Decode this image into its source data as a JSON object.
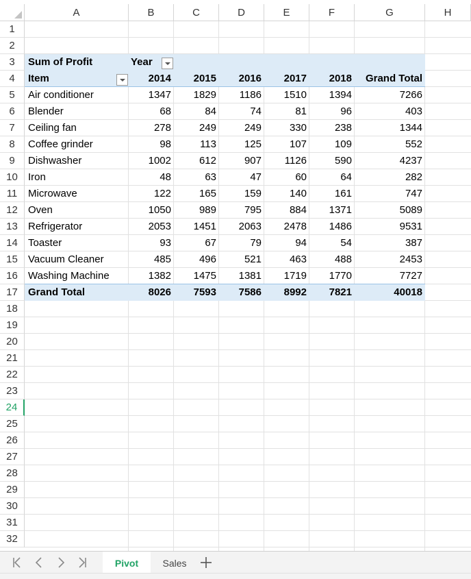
{
  "columns": [
    "A",
    "B",
    "C",
    "D",
    "E",
    "F",
    "G",
    "H"
  ],
  "rows": [
    "1",
    "2",
    "3",
    "4",
    "5",
    "6",
    "7",
    "8",
    "9",
    "10",
    "11",
    "12",
    "13",
    "14",
    "15",
    "16",
    "17",
    "18",
    "19",
    "20",
    "21",
    "22",
    "23",
    "24",
    "25",
    "26",
    "27",
    "28",
    "29",
    "30",
    "31",
    "32"
  ],
  "active_row": "24",
  "pivot": {
    "value_field": "Sum of Profit",
    "column_field": "Year",
    "row_field": "Item",
    "years": [
      "2014",
      "2015",
      "2016",
      "2017",
      "2018"
    ],
    "grand_total_label": "Grand Total",
    "items": [
      {
        "name": "Air conditioner",
        "values": [
          "1347",
          "1829",
          "1186",
          "1510",
          "1394"
        ],
        "total": "7266"
      },
      {
        "name": "Blender",
        "values": [
          "68",
          "84",
          "74",
          "81",
          "96"
        ],
        "total": "403"
      },
      {
        "name": "Ceiling fan",
        "values": [
          "278",
          "249",
          "249",
          "330",
          "238"
        ],
        "total": "1344"
      },
      {
        "name": "Coffee grinder",
        "values": [
          "98",
          "113",
          "125",
          "107",
          "109"
        ],
        "total": "552"
      },
      {
        "name": "Dishwasher",
        "values": [
          "1002",
          "612",
          "907",
          "1126",
          "590"
        ],
        "total": "4237"
      },
      {
        "name": "Iron",
        "values": [
          "48",
          "63",
          "47",
          "60",
          "64"
        ],
        "total": "282"
      },
      {
        "name": "Microwave",
        "values": [
          "122",
          "165",
          "159",
          "140",
          "161"
        ],
        "total": "747"
      },
      {
        "name": "Oven",
        "values": [
          "1050",
          "989",
          "795",
          "884",
          "1371"
        ],
        "total": "5089"
      },
      {
        "name": "Refrigerator",
        "values": [
          "2053",
          "1451",
          "2063",
          "2478",
          "1486"
        ],
        "total": "9531"
      },
      {
        "name": "Toaster",
        "values": [
          "93",
          "67",
          "79",
          "94",
          "54"
        ],
        "total": "387"
      },
      {
        "name": "Vacuum Cleaner",
        "values": [
          "485",
          "496",
          "521",
          "463",
          "488"
        ],
        "total": "2453"
      },
      {
        "name": "Washing Machine",
        "values": [
          "1382",
          "1475",
          "1381",
          "1719",
          "1770"
        ],
        "total": "7727"
      }
    ],
    "grand_total": {
      "values": [
        "8026",
        "7593",
        "7586",
        "8992",
        "7821"
      ],
      "total": "40018"
    }
  },
  "tabs": [
    {
      "label": "Pivot",
      "active": true
    },
    {
      "label": "Sales",
      "active": false
    }
  ],
  "nav_icons": [
    "first-sheet-icon",
    "prev-sheet-icon",
    "next-sheet-icon",
    "last-sheet-icon"
  ],
  "accent_color": "#22a366",
  "pivot_band_color": "#ddebf7"
}
